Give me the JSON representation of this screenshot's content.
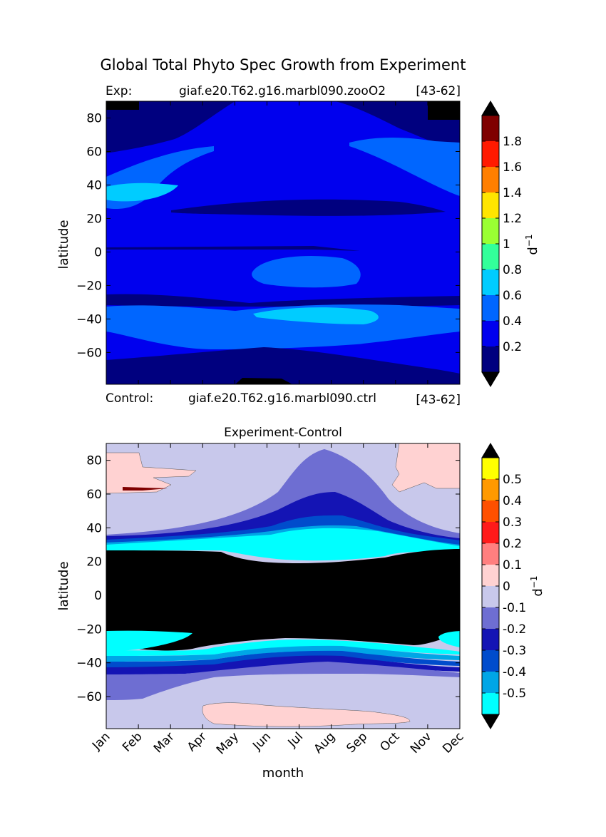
{
  "figure_title": "Global Total Phyto Spec Growth from Experiment",
  "chart_data": [
    {
      "type": "heatmap",
      "panel": "experiment",
      "exp_prefix": "Exp:",
      "exp_case": "giaf.e20.T62.g16.marbl090.zooO2",
      "exp_years": "[43-62]",
      "control_prefix": "Control:",
      "control_case": "giaf.e20.T62.g16.marbl090.ctrl",
      "control_years": "[43-62]",
      "xlabel": "",
      "ylabel": "latitude",
      "ylim": [
        -79,
        90
      ],
      "yticks": [
        80,
        60,
        40,
        20,
        0,
        -20,
        -40,
        -60
      ],
      "colorbar": {
        "unit_label": "d",
        "unit_power": "−1",
        "levels": [
          0,
          0.2,
          0.4,
          0.6,
          0.8,
          1.0,
          1.2,
          1.4,
          1.6,
          1.8,
          2.0
        ],
        "tick_labels": [
          "0.2",
          "0.4",
          "0.6",
          "0.8",
          "1",
          "1.2",
          "1.4",
          "1.6",
          "1.8"
        ],
        "colors": [
          "#00007f",
          "#0000ee",
          "#0066ff",
          "#00ccff",
          "#33ff9a",
          "#9aff33",
          "#ffe500",
          "#ff7f00",
          "#ff1a00",
          "#7f0000"
        ],
        "extend_color": "#000000"
      }
    },
    {
      "type": "heatmap",
      "panel": "difference",
      "title": "Experiment-Control",
      "xlabel": "month",
      "ylabel": "latitude",
      "ylim": [
        -79,
        90
      ],
      "yticks": [
        80,
        60,
        40,
        20,
        0,
        -20,
        -40,
        -60
      ],
      "months": [
        "Jan",
        "Feb",
        "Mar",
        "Apr",
        "May",
        "Jun",
        "Jul",
        "Aug",
        "Sep",
        "Oct",
        "Nov",
        "Dec"
      ],
      "colorbar": {
        "unit_label": "d",
        "unit_power": "−1",
        "levels": [
          -0.6,
          -0.5,
          -0.4,
          -0.3,
          -0.2,
          -0.1,
          0,
          0.1,
          0.2,
          0.3,
          0.4,
          0.5,
          0.6
        ],
        "tick_labels": [
          "-0.5",
          "-0.4",
          "-0.3",
          "-0.2",
          "-0.1",
          "0",
          "0.1",
          "0.2",
          "0.3",
          "0.4",
          "0.5"
        ],
        "colors": [
          "#00ffff",
          "#00a6e6",
          "#004ccc",
          "#1414b4",
          "#6e6ed2",
          "#c8c8eb",
          "#ffd2d2",
          "#ff7f7f",
          "#ff1a1a",
          "#ff5000",
          "#ff9900",
          "#ffff00"
        ],
        "extend_color": "#000000"
      }
    }
  ]
}
